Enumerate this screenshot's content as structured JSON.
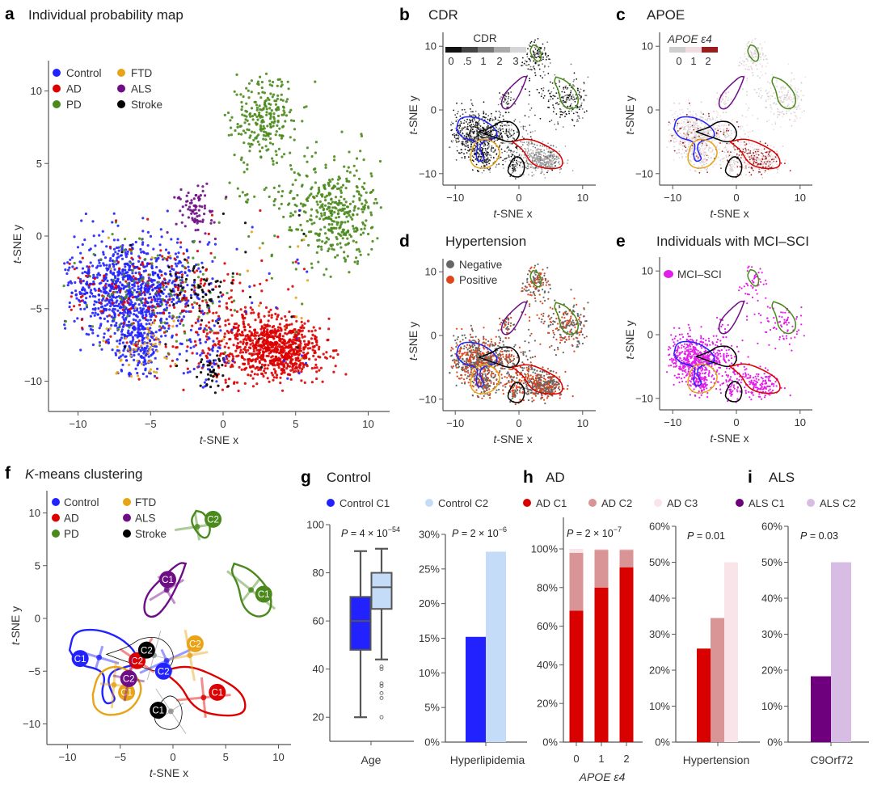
{
  "figure": {
    "panels": {
      "a": {
        "letter": "a",
        "title": "Individual probability map"
      },
      "b": {
        "letter": "b",
        "title": "CDR"
      },
      "c": {
        "letter": "c",
        "title": "APOE"
      },
      "d": {
        "letter": "d",
        "title": "Hypertension"
      },
      "e": {
        "letter": "e",
        "title": "Individuals with MCI–SCI"
      },
      "f": {
        "letter": "f",
        "title_italic": "K",
        "title_rest": "-means clustering"
      },
      "g": {
        "letter": "g",
        "title": "Control"
      },
      "h": {
        "letter": "h",
        "title": "AD"
      },
      "i": {
        "letter": "i",
        "title": "ALS"
      }
    },
    "tsne_axis": {
      "xlabel_italic": "t",
      "xlabel_rest": "-SNE x",
      "ylabel_italic": "t",
      "ylabel_rest": "-SNE y"
    }
  },
  "chart_data": [
    {
      "id": "a",
      "type": "scatter",
      "title": "Individual probability map",
      "xlabel": "t-SNE x",
      "ylabel": "t-SNE y",
      "xlim": [
        -12,
        12
      ],
      "ylim": [
        -12,
        12
      ],
      "xticks": [
        -10,
        -5,
        0,
        5,
        10
      ],
      "yticks": [
        -10,
        -5,
        0,
        5,
        10
      ],
      "legend": {
        "placement": "top-left",
        "entries": [
          {
            "label": "Control",
            "color": "#2222ff"
          },
          {
            "label": "AD",
            "color": "#dd0000"
          },
          {
            "label": "PD",
            "color": "#4a8a1c"
          },
          {
            "label": "FTD",
            "color": "#e8a317"
          },
          {
            "label": "ALS",
            "color": "#6e0d86"
          },
          {
            "label": "Stroke",
            "color": "#000000"
          }
        ]
      },
      "clusters": [
        {
          "group": "PD",
          "center": [
            2.8,
            8.3
          ],
          "spread": [
            1.1,
            1.6
          ],
          "n": 260
        },
        {
          "group": "PD",
          "center": [
            7.8,
            1.5
          ],
          "spread": [
            1.5,
            1.8
          ],
          "n": 380
        },
        {
          "group": "PD",
          "center": [
            4.2,
            2.7
          ],
          "spread": [
            2.0,
            0.4
          ],
          "n": 40
        },
        {
          "group": "ALS",
          "center": [
            -1.9,
            1.7
          ],
          "spread": [
            0.6,
            0.8
          ],
          "n": 80
        },
        {
          "group": "Control",
          "center": [
            -6.5,
            -3.8
          ],
          "spread": [
            2.2,
            1.7
          ],
          "n": 950
        },
        {
          "group": "Control",
          "center": [
            -5.8,
            -7.5
          ],
          "spread": [
            0.8,
            1.0
          ],
          "n": 180
        },
        {
          "group": "AD",
          "center": [
            4.0,
            -7.8
          ],
          "spread": [
            1.4,
            1.0
          ],
          "n": 650
        },
        {
          "group": "AD",
          "center": [
            0.8,
            -7.3
          ],
          "spread": [
            1.6,
            1.8
          ],
          "n": 260
        },
        {
          "group": "AD",
          "center": [
            -5.0,
            -4.0
          ],
          "spread": [
            3.0,
            1.6
          ],
          "n": 170
        },
        {
          "group": "PD",
          "center": [
            -4.5,
            -3.8
          ],
          "spread": [
            3.0,
            1.6
          ],
          "n": 110
        },
        {
          "group": "Stroke",
          "center": [
            -1.8,
            -3.5
          ],
          "spread": [
            1.3,
            0.7
          ],
          "n": 50
        },
        {
          "group": "Stroke",
          "center": [
            -0.8,
            -9.4
          ],
          "spread": [
            0.5,
            0.6
          ],
          "n": 40
        },
        {
          "group": "FTD",
          "center": [
            -5.8,
            -7.8
          ],
          "spread": [
            1.2,
            0.9
          ],
          "n": 50
        },
        {
          "group": "Control",
          "center": [
            -1.0,
            -7.5
          ],
          "spread": [
            0.8,
            1.4
          ],
          "n": 60
        }
      ]
    },
    {
      "id": "b",
      "type": "scatter",
      "title": "CDR",
      "xlabel": "t-SNE x",
      "ylabel": "t-SNE y",
      "xlim": [
        -12,
        12
      ],
      "ylim": [
        -12,
        12
      ],
      "xticks": [
        -10,
        0,
        10
      ],
      "yticks": [
        -10,
        0,
        10
      ],
      "colorbar": {
        "title": "CDR",
        "labels": [
          "0",
          ".5",
          "1",
          "2",
          "3"
        ],
        "colors": [
          "#111111",
          "#444444",
          "#777777",
          "#aaaaaa",
          "#d6d6d6"
        ]
      }
    },
    {
      "id": "c",
      "type": "scatter",
      "title": "APOE",
      "xlabel": "t-SNE x",
      "ylabel": "t-SNE y",
      "xlim": [
        -12,
        12
      ],
      "ylim": [
        -12,
        12
      ],
      "xticks": [
        -10,
        0,
        10
      ],
      "yticks": [
        -10,
        0,
        10
      ],
      "colorbar": {
        "title": "APOE ε4",
        "labels": [
          "0",
          "1",
          "2"
        ],
        "colors": [
          "#cfcfcf",
          "#f1dde1",
          "#9b1c1c"
        ]
      }
    },
    {
      "id": "d",
      "type": "scatter",
      "title": "Hypertension",
      "xlabel": "t-SNE x",
      "ylabel": "t-SNE y",
      "xlim": [
        -12,
        12
      ],
      "ylim": [
        -12,
        12
      ],
      "xticks": [
        -10,
        0,
        10
      ],
      "yticks": [
        -10,
        0,
        10
      ],
      "legend": {
        "placement": "top-left",
        "entries": [
          {
            "label": "Negative",
            "color": "#666666"
          },
          {
            "label": "Positive",
            "color": "#e0461a"
          }
        ]
      }
    },
    {
      "id": "e",
      "type": "scatter",
      "title": "Individuals with MCI–SCI",
      "xlabel": "t-SNE x",
      "ylabel": "t-SNE y",
      "xlim": [
        -12,
        12
      ],
      "ylim": [
        -12,
        12
      ],
      "xticks": [
        -10,
        0,
        10
      ],
      "yticks": [
        -10,
        0,
        10
      ],
      "legend": {
        "placement": "top-left",
        "entries": [
          {
            "label": "MCI–SCI",
            "color": "#e21ee8"
          }
        ]
      }
    },
    {
      "id": "f",
      "type": "scatter",
      "title": "K-means clustering",
      "xlabel": "t-SNE x",
      "ylabel": "t-SNE y",
      "xlim": [
        -12,
        12
      ],
      "ylim": [
        -12,
        12
      ],
      "xticks": [
        -10,
        -5,
        0,
        5,
        10
      ],
      "yticks": [
        -10,
        -5,
        0,
        5,
        10
      ],
      "legend": {
        "placement": "top-left",
        "entries": [
          {
            "label": "Control",
            "color": "#2222ff"
          },
          {
            "label": "AD",
            "color": "#dd0000"
          },
          {
            "label": "PD",
            "color": "#4a8a1c"
          },
          {
            "label": "FTD",
            "color": "#e8a317"
          },
          {
            "label": "ALS",
            "color": "#6e0d86"
          },
          {
            "label": "Stroke",
            "color": "#000000"
          }
        ]
      },
      "centroids": [
        {
          "group": "PD",
          "label": "C2",
          "center": [
            2.3,
            8.7
          ],
          "tag": [
            3.8,
            9.4
          ]
        },
        {
          "group": "PD",
          "label": "C1",
          "center": [
            7.4,
            2.7
          ],
          "tag": [
            8.6,
            2.3
          ]
        },
        {
          "group": "ALS",
          "label": "C1",
          "center": [
            -0.6,
            2.7
          ],
          "tag": [
            -0.5,
            3.7
          ]
        },
        {
          "group": "Control",
          "label": "C1",
          "center": [
            -7.0,
            -3.7
          ],
          "tag": [
            -8.8,
            -3.8
          ]
        },
        {
          "group": "Control",
          "label": "C2",
          "center": [
            -0.6,
            -4.0
          ],
          "tag": [
            -0.9,
            -5.0
          ]
        },
        {
          "group": "AD",
          "label": "C2",
          "center": [
            -3.4,
            -4.0
          ],
          "tag": [
            -3.4,
            -4.0
          ]
        },
        {
          "group": "AD",
          "label": "C1",
          "center": [
            2.9,
            -7.5
          ],
          "tag": [
            4.2,
            -7.0
          ]
        },
        {
          "group": "Stroke",
          "label": "C2",
          "center": [
            -1.8,
            -3.5
          ],
          "tag": [
            -2.5,
            -3.0
          ]
        },
        {
          "group": "Stroke",
          "label": "C1",
          "center": [
            -0.2,
            -8.8
          ],
          "tag": [
            -1.4,
            -8.7
          ]
        },
        {
          "group": "FTD",
          "label": "C2",
          "center": [
            1.6,
            -3.5
          ],
          "tag": [
            2.1,
            -2.4
          ]
        },
        {
          "group": "FTD",
          "label": "C1",
          "center": [
            -5.6,
            -6.3
          ],
          "tag": [
            -4.4,
            -7.0
          ]
        },
        {
          "group": "ALS",
          "label": "C2",
          "center": [
            -4.2,
            -5.7
          ],
          "tag": [
            -4.2,
            -5.7
          ]
        }
      ]
    },
    {
      "id": "g1",
      "type": "box",
      "title": "Control",
      "categories": [
        "Age"
      ],
      "pvalue": {
        "prefix": "P",
        "text": " = 4 × 10",
        "exp": "−54"
      },
      "ylim": [
        10,
        100
      ],
      "yticks": [
        20,
        40,
        60,
        80,
        100
      ],
      "series": [
        {
          "name": "Control C1",
          "color": "#2222ff",
          "min": 20,
          "q1": 48,
          "median": 60,
          "q3": 70,
          "max": 89,
          "outliers": []
        },
        {
          "name": "Control C2",
          "color": "#c5dcf8",
          "min": 44,
          "q1": 65,
          "median": 74,
          "q3": 80,
          "max": 90,
          "outliers": [
            41,
            40,
            34,
            33,
            30,
            28,
            20
          ]
        }
      ]
    },
    {
      "id": "g2",
      "type": "bar",
      "categories": [
        "Hyperlipidemia"
      ],
      "pvalue": {
        "prefix": "P",
        "text": " = 2 × 10",
        "exp": "−6"
      },
      "ylim": [
        0,
        30
      ],
      "yticks": [
        "0%",
        "5%",
        "10%",
        "15%",
        "20%",
        "25%",
        "30%"
      ],
      "series": [
        {
          "name": "Control C1",
          "color": "#2222ff",
          "values": [
            15.2
          ]
        },
        {
          "name": "Control C2",
          "color": "#c5dcf8",
          "values": [
            27.5
          ]
        }
      ],
      "legend": {
        "placement": "top",
        "entries": [
          "Control C1",
          "Control C2"
        ]
      }
    },
    {
      "id": "h1",
      "type": "bar",
      "stacked": true,
      "title": "AD",
      "xlabel": "APOE ε4",
      "categories": [
        "0",
        "1",
        "2"
      ],
      "pvalue": {
        "prefix": "P",
        "text": " = 2 × 10",
        "exp": "−7"
      },
      "ylim": [
        0,
        110
      ],
      "yticks": [
        "0%",
        "20%",
        "40%",
        "60%",
        "80%",
        "100%"
      ],
      "series": [
        {
          "name": "AD C1",
          "color": "#d90000",
          "values": [
            68,
            80,
            90.5
          ]
        },
        {
          "name": "AD C2",
          "color": "#d99596",
          "values": [
            30,
            19.5,
            9
          ]
        },
        {
          "name": "AD C3",
          "color": "#f9e5e9",
          "values": [
            2,
            0.5,
            0.5
          ]
        }
      ],
      "legend": {
        "placement": "top",
        "entries": [
          "AD C1",
          "AD C2",
          "AD C3"
        ]
      }
    },
    {
      "id": "h2",
      "type": "bar",
      "categories": [
        "Hypertension"
      ],
      "pvalue": {
        "prefix": "P",
        "text": " = 0.01"
      },
      "ylim": [
        0,
        60
      ],
      "yticks": [
        "0%",
        "10%",
        "20%",
        "30%",
        "40%",
        "50%",
        "60%"
      ],
      "series": [
        {
          "name": "AD C1",
          "color": "#d90000",
          "values": [
            26
          ]
        },
        {
          "name": "AD C2",
          "color": "#d99596",
          "values": [
            34.5
          ]
        },
        {
          "name": "AD C3",
          "color": "#f9e5e9",
          "values": [
            50
          ]
        }
      ]
    },
    {
      "id": "i",
      "type": "bar",
      "title": "ALS",
      "categories": [
        "C9Orf72"
      ],
      "pvalue": {
        "prefix": "P",
        "text": " = 0.03"
      },
      "ylim": [
        0,
        60
      ],
      "yticks": [
        "0%",
        "10%",
        "20%",
        "30%",
        "40%",
        "50%",
        "60%"
      ],
      "series": [
        {
          "name": "ALS C1",
          "color": "#6e007e",
          "values": [
            18.3
          ]
        },
        {
          "name": "ALS C2",
          "color": "#d7bde3",
          "values": [
            50
          ]
        }
      ],
      "legend": {
        "placement": "top",
        "entries": [
          "ALS C1",
          "ALS C2"
        ]
      }
    }
  ],
  "contours": {
    "PD_top": {
      "color": "#4a8a1c",
      "pts": [
        [
          2.2,
          10.2
        ],
        [
          3.0,
          10.0
        ],
        [
          3.6,
          8.6
        ],
        [
          3.3,
          7.6
        ],
        [
          2.6,
          7.7
        ],
        [
          1.6,
          9.2
        ],
        [
          2.2,
          10.2
        ]
      ]
    },
    "PD_right": {
      "color": "#4a8a1c",
      "pts": [
        [
          5.8,
          5.2
        ],
        [
          7.5,
          4.6
        ],
        [
          9.3,
          2.5
        ],
        [
          9.3,
          0.6
        ],
        [
          8.0,
          0.0
        ],
        [
          6.6,
          1.0
        ],
        [
          6.2,
          3.2
        ],
        [
          5.5,
          4.4
        ],
        [
          5.8,
          5.2
        ]
      ]
    },
    "ALS": {
      "color": "#6e0d86",
      "pts": [
        [
          1.2,
          5.2
        ],
        [
          0.8,
          4.0
        ],
        [
          -0.4,
          1.5
        ],
        [
          -1.7,
          0.0
        ],
        [
          -2.8,
          0.4
        ],
        [
          -2.6,
          2.2
        ],
        [
          -1.0,
          3.9
        ],
        [
          0.6,
          5.3
        ],
        [
          1.2,
          5.2
        ]
      ]
    },
    "Control": {
      "color": "#2222ff",
      "pts": [
        [
          -9.8,
          -3.0
        ],
        [
          -9.4,
          -1.2
        ],
        [
          -7.2,
          -1.0
        ],
        [
          -5.0,
          -1.8
        ],
        [
          -3.5,
          -3.2
        ],
        [
          -3.4,
          -4.3
        ],
        [
          -4.5,
          -4.6
        ],
        [
          -5.8,
          -5.0
        ],
        [
          -6.2,
          -5.9
        ],
        [
          -5.8,
          -7.0
        ],
        [
          -5.4,
          -7.8
        ],
        [
          -6.4,
          -8.2
        ],
        [
          -6.8,
          -7.0
        ],
        [
          -6.4,
          -5.6
        ],
        [
          -7.0,
          -4.8
        ],
        [
          -9.0,
          -4.4
        ],
        [
          -9.8,
          -3.0
        ]
      ]
    },
    "FTD": {
      "color": "#e8a317",
      "pts": [
        [
          -7.6,
          -7.2
        ],
        [
          -7.1,
          -5.2
        ],
        [
          -5.5,
          -4.4
        ],
        [
          -3.6,
          -5.2
        ],
        [
          -2.8,
          -6.8
        ],
        [
          -4.0,
          -8.8
        ],
        [
          -6.2,
          -9.3
        ],
        [
          -7.5,
          -8.5
        ],
        [
          -7.6,
          -7.2
        ]
      ]
    },
    "Stroke_mid": {
      "color": "#000000",
      "pts": [
        [
          -6.3,
          -3.4
        ],
        [
          -4.2,
          -2.7
        ],
        [
          -3.0,
          -1.8
        ],
        [
          -1.0,
          -1.8
        ],
        [
          0.2,
          -3.4
        ],
        [
          -0.3,
          -4.8
        ],
        [
          -1.6,
          -5.1
        ],
        [
          -3.5,
          -4.4
        ],
        [
          -5.0,
          -3.9
        ],
        [
          -6.3,
          -3.4
        ]
      ]
    },
    "Stroke_low": {
      "color": "#000000",
      "pts": [
        [
          -1.6,
          -9.0
        ],
        [
          -1.0,
          -7.6
        ],
        [
          0.0,
          -7.2
        ],
        [
          1.0,
          -8.5
        ],
        [
          0.6,
          -10.4
        ],
        [
          -0.8,
          -10.6
        ],
        [
          -1.8,
          -9.8
        ],
        [
          -1.6,
          -9.0
        ]
      ]
    },
    "AD": {
      "color": "#dd0000",
      "pts": [
        [
          -1.0,
          -5.0
        ],
        [
          1.4,
          -4.4
        ],
        [
          4.2,
          -5.5
        ],
        [
          6.6,
          -7.0
        ],
        [
          7.0,
          -8.8
        ],
        [
          5.6,
          -9.3
        ],
        [
          3.0,
          -9.0
        ],
        [
          1.6,
          -8.0
        ],
        [
          0.8,
          -6.4
        ],
        [
          -1.0,
          -5.0
        ]
      ]
    }
  }
}
